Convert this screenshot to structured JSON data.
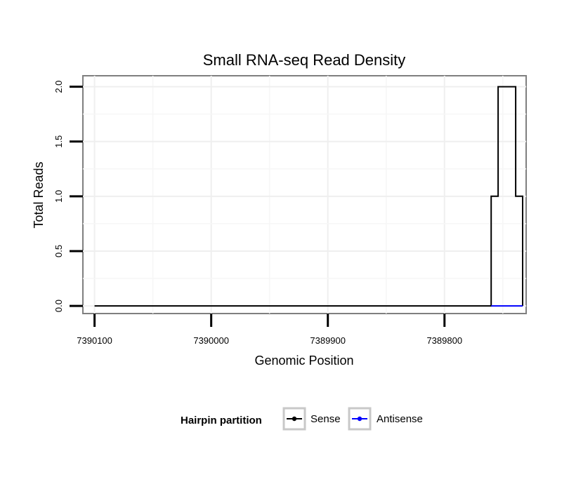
{
  "chart_data": {
    "type": "line",
    "title": "Small RNA-seq Read Density",
    "xlabel": "Genomic Position",
    "ylabel": "Total Reads",
    "x_reversed": true,
    "xlim": [
      7390110,
      7389730
    ],
    "ylim": [
      -0.07,
      2.1
    ],
    "x_ticks": [
      7390100,
      7390000,
      7389900,
      7389800
    ],
    "x_tick_labels": [
      "7390100",
      "7390000",
      "7389900",
      "7389800"
    ],
    "y_ticks": [
      0.0,
      0.5,
      1.0,
      1.5,
      2.0
    ],
    "y_tick_labels": [
      "0.0",
      "0.5",
      "1.0",
      "1.5",
      "2.0"
    ],
    "grid": true,
    "legend": {
      "title": "Hairpin partition",
      "placement": "bottom"
    },
    "series": [
      {
        "name": "Sense",
        "color": "#000000",
        "x": [
          7390100,
          7389760,
          7389760,
          7389754,
          7389754,
          7389739,
          7389739,
          7389733,
          7389733
        ],
        "y": [
          0,
          0,
          1,
          1,
          2,
          2,
          1,
          1,
          0
        ]
      },
      {
        "name": "Antisense",
        "color": "#0000ff",
        "x": [
          7389760,
          7389733
        ],
        "y": [
          0,
          0
        ]
      }
    ]
  }
}
